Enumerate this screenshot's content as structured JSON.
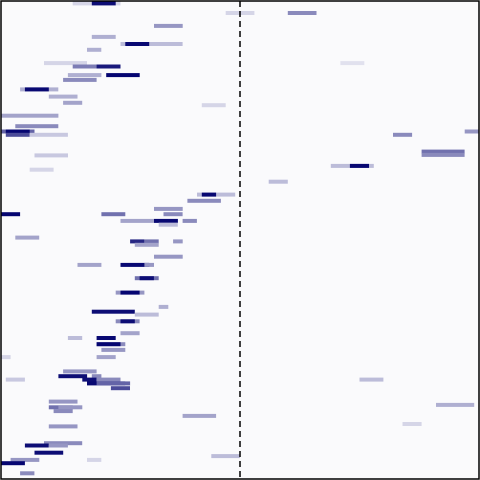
{
  "colors": {
    "background": "#fafafc",
    "frame": "#000000",
    "divider": "#000000",
    "intensity_low": "#fafafc",
    "intensity_high": "#00006e"
  },
  "chart_data": {
    "type": "heatmap",
    "title": "",
    "xlabel": "",
    "ylabel": "",
    "x_range": [
      0,
      1
    ],
    "y_range": [
      0,
      1
    ],
    "grid": false,
    "legend": "none",
    "divider": {
      "x": 0.5,
      "style": "dashed"
    },
    "value_range": [
      0,
      1
    ],
    "rows": [
      {
        "y": 0.005,
        "segments": [
          [
            0.15,
            0.25,
            0.15
          ],
          [
            0.19,
            0.24,
            0.95
          ]
        ]
      },
      {
        "y": 0.025,
        "segments": [
          [
            0.47,
            0.53,
            0.15
          ],
          [
            0.6,
            0.66,
            0.45
          ]
        ]
      },
      {
        "y": 0.052,
        "segments": [
          [
            0.32,
            0.38,
            0.4
          ]
        ]
      },
      {
        "y": 0.075,
        "segments": [
          [
            0.19,
            0.24,
            0.3
          ]
        ]
      },
      {
        "y": 0.09,
        "segments": [
          [
            0.25,
            0.38,
            0.25
          ],
          [
            0.26,
            0.31,
            0.97
          ]
        ]
      },
      {
        "y": 0.102,
        "segments": [
          [
            0.18,
            0.21,
            0.3
          ]
        ]
      },
      {
        "y": 0.13,
        "segments": [
          [
            0.09,
            0.18,
            0.15
          ],
          [
            0.71,
            0.76,
            0.1
          ]
        ]
      },
      {
        "y": 0.137,
        "segments": [
          [
            0.15,
            0.21,
            0.5
          ],
          [
            0.2,
            0.25,
            0.9
          ]
        ]
      },
      {
        "y": 0.155,
        "segments": [
          [
            0.14,
            0.21,
            0.3
          ],
          [
            0.22,
            0.29,
            0.98
          ]
        ]
      },
      {
        "y": 0.165,
        "segments": [
          [
            0.13,
            0.2,
            0.45
          ]
        ]
      },
      {
        "y": 0.185,
        "segments": [
          [
            0.04,
            0.12,
            0.3
          ],
          [
            0.05,
            0.1,
            0.97
          ]
        ]
      },
      {
        "y": 0.2,
        "segments": [
          [
            0.1,
            0.16,
            0.3
          ]
        ]
      },
      {
        "y": 0.213,
        "segments": [
          [
            0.13,
            0.17,
            0.35
          ]
        ]
      },
      {
        "y": 0.218,
        "segments": [
          [
            0.42,
            0.47,
            0.15
          ]
        ]
      },
      {
        "y": 0.24,
        "segments": [
          [
            0.0,
            0.12,
            0.35
          ]
        ]
      },
      {
        "y": 0.262,
        "segments": [
          [
            0.03,
            0.12,
            0.45
          ]
        ]
      },
      {
        "y": 0.273,
        "segments": [
          [
            0.0,
            0.07,
            0.6
          ],
          [
            0.01,
            0.06,
            0.98
          ],
          [
            0.97,
            1.0,
            0.4
          ]
        ]
      },
      {
        "y": 0.28,
        "segments": [
          [
            0.01,
            0.06,
            0.7
          ],
          [
            0.06,
            0.14,
            0.2
          ],
          [
            0.82,
            0.86,
            0.45
          ]
        ]
      },
      {
        "y": 0.315,
        "segments": [
          [
            0.88,
            0.97,
            0.55
          ]
        ]
      },
      {
        "y": 0.322,
        "segments": [
          [
            0.88,
            0.97,
            0.45
          ]
        ]
      },
      {
        "y": 0.323,
        "segments": [
          [
            0.07,
            0.14,
            0.2
          ]
        ]
      },
      {
        "y": 0.345,
        "segments": [
          [
            0.69,
            0.78,
            0.25
          ],
          [
            0.73,
            0.77,
            0.97
          ]
        ]
      },
      {
        "y": 0.353,
        "segments": [
          [
            0.06,
            0.11,
            0.15
          ]
        ]
      },
      {
        "y": 0.378,
        "segments": [
          [
            0.56,
            0.6,
            0.25
          ]
        ]
      },
      {
        "y": 0.405,
        "segments": [
          [
            0.41,
            0.49,
            0.25
          ],
          [
            0.42,
            0.45,
            0.97
          ]
        ]
      },
      {
        "y": 0.418,
        "segments": [
          [
            0.39,
            0.46,
            0.45
          ]
        ]
      },
      {
        "y": 0.435,
        "segments": [
          [
            0.32,
            0.38,
            0.4
          ]
        ]
      },
      {
        "y": 0.446,
        "segments": [
          [
            0.0,
            0.04,
            0.98
          ],
          [
            0.21,
            0.26,
            0.55
          ],
          [
            0.34,
            0.38,
            0.45
          ]
        ]
      },
      {
        "y": 0.46,
        "segments": [
          [
            0.25,
            0.32,
            0.35
          ],
          [
            0.32,
            0.37,
            0.97
          ],
          [
            0.38,
            0.41,
            0.45
          ]
        ]
      },
      {
        "y": 0.468,
        "segments": [
          [
            0.33,
            0.37,
            0.25
          ]
        ]
      },
      {
        "y": 0.495,
        "segments": [
          [
            0.03,
            0.08,
            0.35
          ]
        ]
      },
      {
        "y": 0.503,
        "segments": [
          [
            0.27,
            0.3,
            0.85
          ],
          [
            0.3,
            0.33,
            0.55
          ],
          [
            0.36,
            0.38,
            0.4
          ]
        ]
      },
      {
        "y": 0.51,
        "segments": [
          [
            0.28,
            0.33,
            0.35
          ]
        ]
      },
      {
        "y": 0.535,
        "segments": [
          [
            0.32,
            0.38,
            0.4
          ]
        ]
      },
      {
        "y": 0.552,
        "segments": [
          [
            0.16,
            0.21,
            0.35
          ],
          [
            0.25,
            0.31,
            0.97
          ],
          [
            0.3,
            0.32,
            0.4
          ]
        ]
      },
      {
        "y": 0.58,
        "segments": [
          [
            0.28,
            0.33,
            0.55
          ],
          [
            0.29,
            0.32,
            0.95
          ]
        ]
      },
      {
        "y": 0.61,
        "segments": [
          [
            0.24,
            0.3,
            0.4
          ],
          [
            0.25,
            0.29,
            0.98
          ]
        ]
      },
      {
        "y": 0.64,
        "segments": [
          [
            0.33,
            0.35,
            0.3
          ]
        ]
      },
      {
        "y": 0.65,
        "segments": [
          [
            0.19,
            0.28,
            0.95
          ]
        ]
      },
      {
        "y": 0.656,
        "segments": [
          [
            0.28,
            0.33,
            0.25
          ]
        ]
      },
      {
        "y": 0.67,
        "segments": [
          [
            0.24,
            0.29,
            0.45
          ],
          [
            0.25,
            0.28,
            0.95
          ]
        ]
      },
      {
        "y": 0.695,
        "segments": [
          [
            0.25,
            0.29,
            0.35
          ]
        ]
      },
      {
        "y": 0.705,
        "segments": [
          [
            0.2,
            0.24,
            0.97
          ],
          [
            0.14,
            0.17,
            0.25
          ]
        ]
      },
      {
        "y": 0.718,
        "segments": [
          [
            0.2,
            0.26,
            0.45
          ],
          [
            0.2,
            0.25,
            0.98
          ]
        ]
      },
      {
        "y": 0.73,
        "segments": [
          [
            0.21,
            0.26,
            0.4
          ]
        ]
      },
      {
        "y": 0.745,
        "segments": [
          [
            0.0,
            0.02,
            0.15
          ],
          [
            0.2,
            0.24,
            0.35
          ]
        ]
      },
      {
        "y": 0.775,
        "segments": [
          [
            0.13,
            0.2,
            0.4
          ]
        ]
      },
      {
        "y": 0.785,
        "segments": [
          [
            0.12,
            0.18,
            0.95
          ],
          [
            0.19,
            0.21,
            0.45
          ]
        ]
      },
      {
        "y": 0.792,
        "segments": [
          [
            0.01,
            0.05,
            0.2
          ],
          [
            0.17,
            0.2,
            0.95
          ],
          [
            0.2,
            0.25,
            0.45
          ],
          [
            0.75,
            0.8,
            0.25
          ]
        ]
      },
      {
        "y": 0.8,
        "segments": [
          [
            0.18,
            0.26,
            0.97
          ],
          [
            0.2,
            0.27,
            0.6
          ]
        ]
      },
      {
        "y": 0.81,
        "segments": [
          [
            0.23,
            0.27,
            0.7
          ]
        ]
      },
      {
        "y": 0.838,
        "segments": [
          [
            0.1,
            0.16,
            0.4
          ]
        ]
      },
      {
        "y": 0.845,
        "segments": [
          [
            0.91,
            0.99,
            0.3
          ]
        ]
      },
      {
        "y": 0.85,
        "segments": [
          [
            0.1,
            0.15,
            0.55
          ],
          [
            0.12,
            0.17,
            0.4
          ]
        ]
      },
      {
        "y": 0.858,
        "segments": [
          [
            0.11,
            0.15,
            0.45
          ]
        ]
      },
      {
        "y": 0.868,
        "segments": [
          [
            0.38,
            0.45,
            0.35
          ]
        ]
      },
      {
        "y": 0.89,
        "segments": [
          [
            0.1,
            0.16,
            0.4
          ]
        ]
      },
      {
        "y": 0.885,
        "segments": [
          [
            0.84,
            0.88,
            0.15
          ]
        ]
      },
      {
        "y": 0.925,
        "segments": [
          [
            0.09,
            0.17,
            0.45
          ]
        ]
      },
      {
        "y": 0.93,
        "segments": [
          [
            0.05,
            0.1,
            0.95
          ],
          [
            0.1,
            0.14,
            0.4
          ]
        ]
      },
      {
        "y": 0.945,
        "segments": [
          [
            0.07,
            0.13,
            0.95
          ]
        ]
      },
      {
        "y": 0.952,
        "segments": [
          [
            0.44,
            0.5,
            0.25
          ]
        ]
      },
      {
        "y": 0.96,
        "segments": [
          [
            0.02,
            0.08,
            0.4
          ],
          [
            0.18,
            0.21,
            0.15
          ]
        ]
      },
      {
        "y": 0.967,
        "segments": [
          [
            0.0,
            0.05,
            0.98
          ]
        ]
      },
      {
        "y": 0.988,
        "segments": [
          [
            0.04,
            0.07,
            0.45
          ]
        ]
      }
    ]
  }
}
